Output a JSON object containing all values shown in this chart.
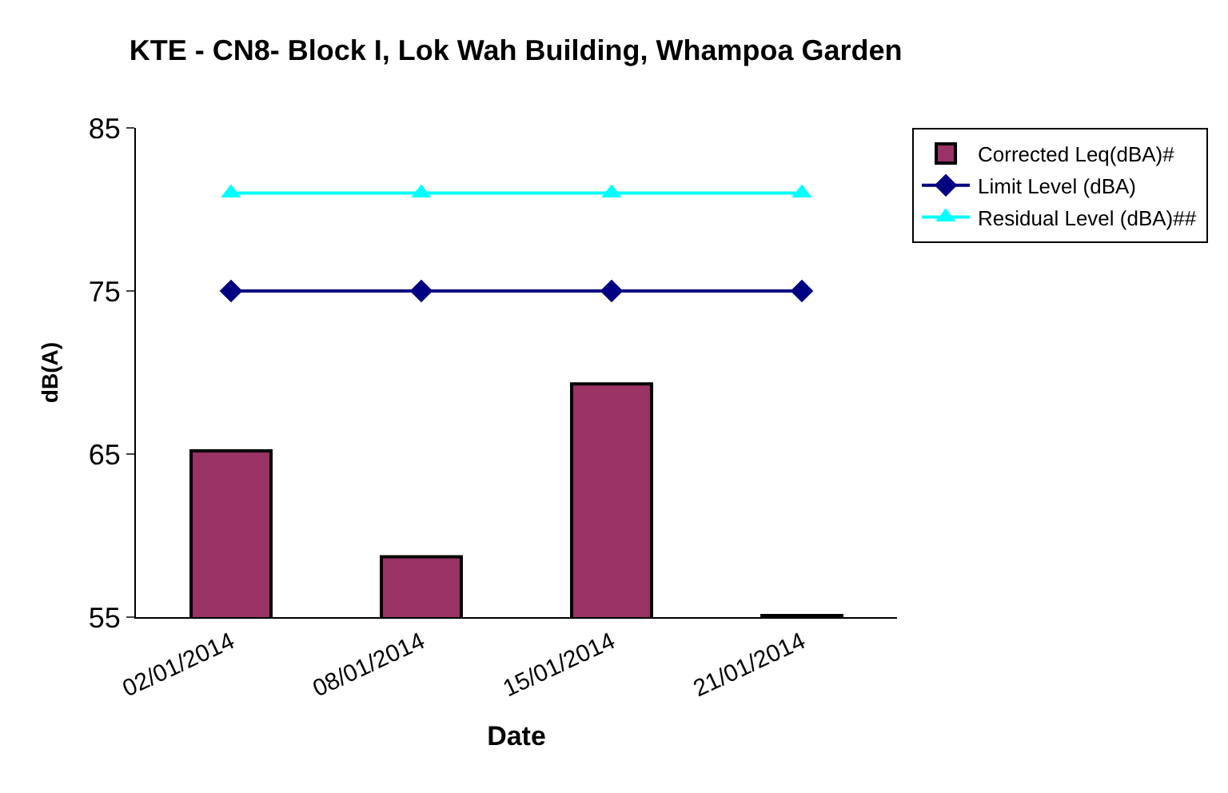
{
  "chart_data": {
    "type": "bar",
    "title": "KTE - CN8- Block I, Lok Wah Building, Whampoa Garden",
    "xlabel": "Date",
    "ylabel": "dB(A)",
    "categories": [
      "02/01/2014",
      "08/01/2014",
      "15/01/2014",
      "21/01/2014"
    ],
    "series": [
      {
        "name": "Corrected Leq(dBA)#",
        "color": "#993366",
        "values": [
          65.2,
          58.7,
          69.3,
          55.1
        ]
      },
      {
        "name": "Limit Level (dBA)",
        "type": "line",
        "marker": "diamond",
        "color": "#000080",
        "values": [
          75,
          75,
          75,
          75
        ]
      },
      {
        "name": "Residual Level (dBA)##",
        "type": "line",
        "marker": "triangle",
        "color": "#00ffff",
        "values": [
          81,
          81,
          81,
          81
        ]
      }
    ],
    "ylim": [
      55,
      85
    ],
    "yticks": [
      55,
      65,
      75,
      85
    ],
    "grid": false,
    "legend": "right"
  }
}
